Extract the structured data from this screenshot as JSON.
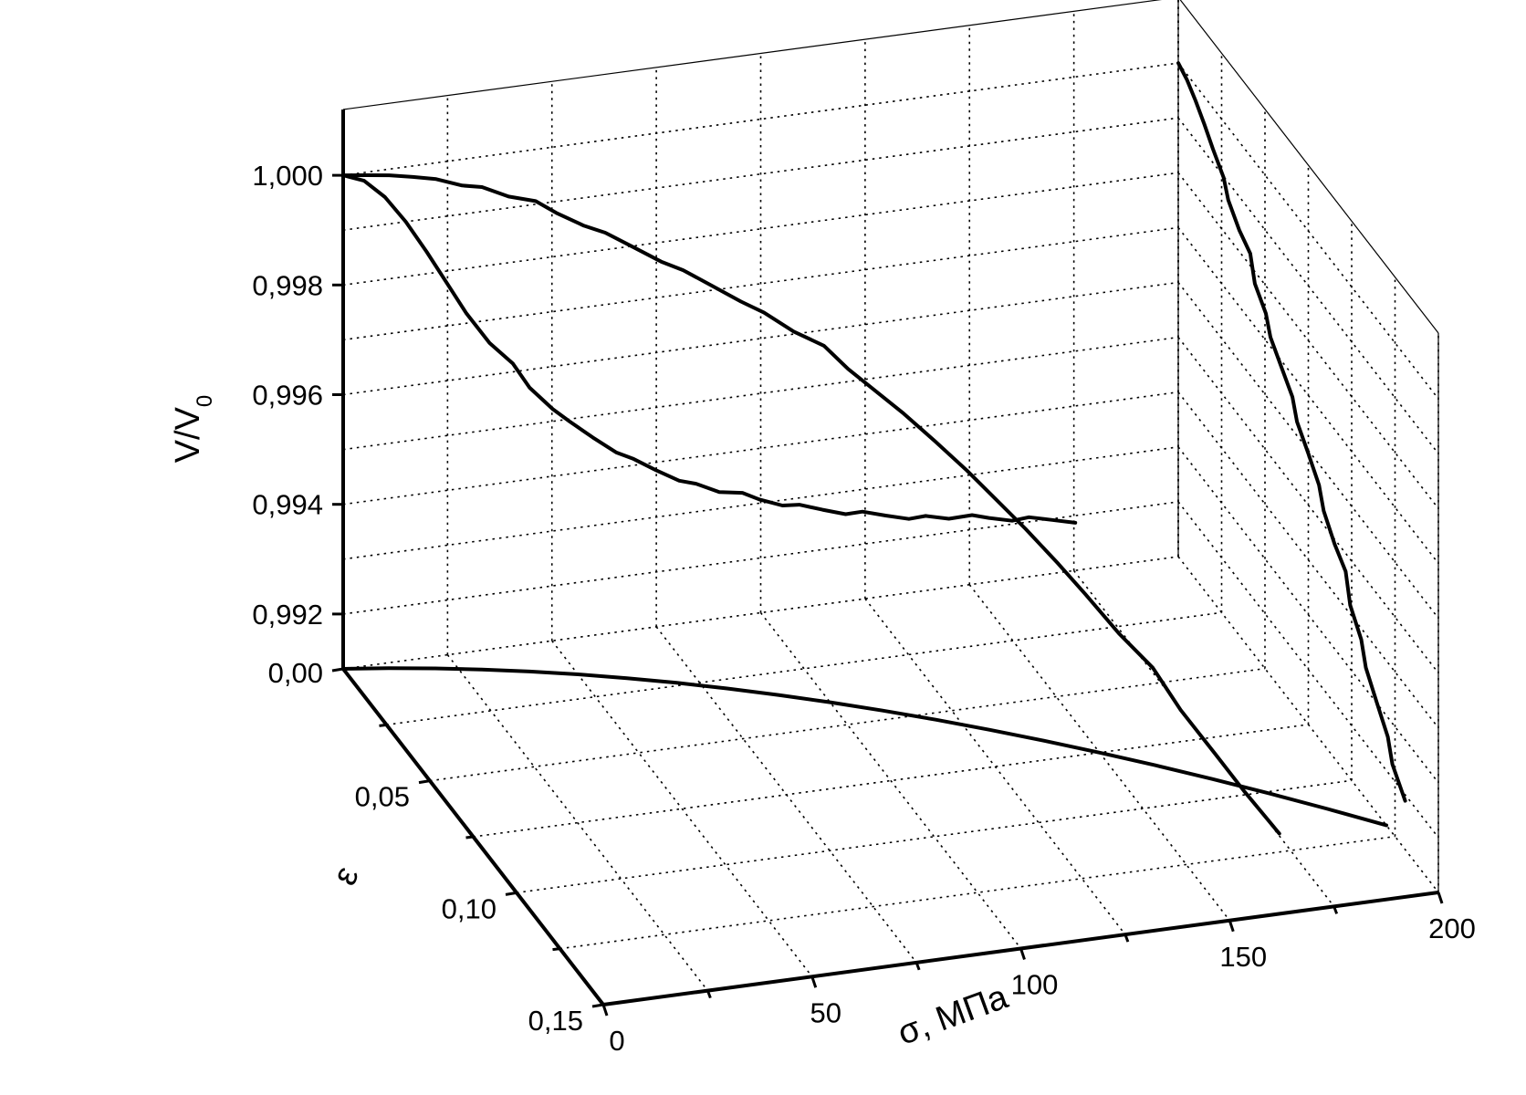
{
  "chart_data": {
    "type": "line3d",
    "title": "",
    "axes": {
      "sigma": {
        "label": "σ, МПа",
        "range": [
          0,
          200
        ],
        "ticks": [
          0,
          50,
          100,
          150,
          200
        ],
        "tick_labels": [
          "0",
          "50",
          "100",
          "150",
          "200"
        ]
      },
      "epsilon": {
        "label": "ε",
        "range": [
          0,
          0.15
        ],
        "ticks": [
          0,
          0.05,
          0.1,
          0.15
        ],
        "tick_labels": [
          "0,00",
          "0,05",
          "0,10",
          "0,15"
        ]
      },
      "v": {
        "label": "V/V",
        "label_subscript": "0",
        "range": [
          0.991,
          1.0012
        ],
        "ticks": [
          0.992,
          0.994,
          0.996,
          0.998,
          1.0
        ],
        "tick_labels": [
          "0,992",
          "0,994",
          "0,996",
          "0,998",
          "1,000"
        ]
      }
    },
    "grid": true,
    "series": [
      {
        "kind": "3d-curve",
        "points": [
          [
            0.0,
            0.0,
            1.0
          ],
          [
            5,
            0.0012,
            1.0
          ],
          [
            10,
            0.0025,
            1.0
          ],
          [
            15,
            0.004,
            0.99998
          ],
          [
            20,
            0.0055,
            0.99995
          ],
          [
            25,
            0.0072,
            0.9999
          ],
          [
            30,
            0.009,
            0.99982
          ],
          [
            35,
            0.011,
            0.99972
          ],
          [
            40,
            0.0132,
            0.9996
          ],
          [
            45,
            0.0155,
            0.99947
          ],
          [
            50,
            0.018,
            0.99933
          ],
          [
            55,
            0.0205,
            0.99918
          ],
          [
            60,
            0.0232,
            0.99902
          ],
          [
            65,
            0.026,
            0.99886
          ],
          [
            70,
            0.029,
            0.9987
          ],
          [
            75,
            0.0322,
            0.99854
          ],
          [
            80,
            0.0356,
            0.99838
          ],
          [
            85,
            0.0392,
            0.9982
          ],
          [
            90,
            0.043,
            0.998
          ],
          [
            95,
            0.047,
            0.99778
          ],
          [
            100,
            0.0512,
            0.99752
          ],
          [
            105,
            0.0556,
            0.99724
          ],
          [
            110,
            0.0602,
            0.99694
          ],
          [
            115,
            0.065,
            0.99662
          ],
          [
            120,
            0.07,
            0.99628
          ],
          [
            125,
            0.0752,
            0.9959
          ],
          [
            130,
            0.0806,
            0.99552
          ],
          [
            135,
            0.0862,
            0.9951
          ],
          [
            140,
            0.092,
            0.99466
          ],
          [
            145,
            0.098,
            0.99418
          ],
          [
            150,
            0.1042,
            0.99368
          ],
          [
            155,
            0.1106,
            0.99316
          ],
          [
            160,
            0.1172,
            0.99262
          ],
          [
            165,
            0.124,
            0.9921
          ],
          [
            170,
            0.131,
            0.9916
          ]
        ]
      },
      {
        "kind": "projection-sigma-v",
        "points": [
          [
            0,
            1.0
          ],
          [
            5,
            0.99985
          ],
          [
            10,
            0.9995
          ],
          [
            15,
            0.999
          ],
          [
            20,
            0.9984
          ],
          [
            25,
            0.99775
          ],
          [
            30,
            0.99715
          ],
          [
            35,
            0.9966
          ],
          [
            40,
            0.9961
          ],
          [
            45,
            0.99565
          ],
          [
            50,
            0.99525
          ],
          [
            55,
            0.9949
          ],
          [
            60,
            0.9946
          ],
          [
            65,
            0.99432
          ],
          [
            70,
            0.99408
          ],
          [
            75,
            0.99386
          ],
          [
            80,
            0.99366
          ],
          [
            85,
            0.99348
          ],
          [
            90,
            0.99332
          ],
          [
            95,
            0.99318
          ],
          [
            100,
            0.99305
          ],
          [
            105,
            0.99293
          ],
          [
            110,
            0.99282
          ],
          [
            115,
            0.99272
          ],
          [
            120,
            0.99263
          ],
          [
            125,
            0.99255
          ],
          [
            130,
            0.99247
          ],
          [
            135,
            0.9924
          ],
          [
            140,
            0.99233
          ],
          [
            145,
            0.99227
          ],
          [
            150,
            0.99221
          ],
          [
            155,
            0.99215
          ],
          [
            160,
            0.99209
          ],
          [
            165,
            0.99203
          ],
          [
            170,
            0.99197
          ],
          [
            175,
            0.99191
          ]
        ]
      },
      {
        "kind": "projection-epsilon-v",
        "points": [
          [
            0.0,
            1.0
          ],
          [
            0.005,
            0.9999
          ],
          [
            0.01,
            0.99972
          ],
          [
            0.015,
            0.9995
          ],
          [
            0.02,
            0.99925
          ],
          [
            0.025,
            0.99898
          ],
          [
            0.03,
            0.9987
          ],
          [
            0.035,
            0.9984
          ],
          [
            0.04,
            0.9981
          ],
          [
            0.045,
            0.9978
          ],
          [
            0.05,
            0.9975
          ],
          [
            0.055,
            0.9972
          ],
          [
            0.06,
            0.9969
          ],
          [
            0.065,
            0.9966
          ],
          [
            0.07,
            0.99628
          ],
          [
            0.075,
            0.99596
          ],
          [
            0.08,
            0.99562
          ],
          [
            0.085,
            0.99528
          ],
          [
            0.09,
            0.99492
          ],
          [
            0.095,
            0.99455
          ],
          [
            0.1,
            0.99418
          ],
          [
            0.105,
            0.9938
          ],
          [
            0.11,
            0.99342
          ],
          [
            0.115,
            0.99303
          ],
          [
            0.12,
            0.99265
          ],
          [
            0.125,
            0.99228
          ],
          [
            0.131,
            0.9919
          ]
        ]
      },
      {
        "kind": "projection-sigma-epsilon",
        "points": [
          [
            0,
            0.0
          ],
          [
            10,
            0.0022
          ],
          [
            20,
            0.0048
          ],
          [
            30,
            0.0078
          ],
          [
            40,
            0.0112
          ],
          [
            50,
            0.015
          ],
          [
            60,
            0.0192
          ],
          [
            70,
            0.0238
          ],
          [
            80,
            0.0288
          ],
          [
            90,
            0.0342
          ],
          [
            100,
            0.04
          ],
          [
            110,
            0.0462
          ],
          [
            120,
            0.0528
          ],
          [
            130,
            0.0598
          ],
          [
            140,
            0.0672
          ],
          [
            150,
            0.075
          ],
          [
            160,
            0.0832
          ],
          [
            170,
            0.0918
          ],
          [
            180,
            0.1008
          ],
          [
            190,
            0.1102
          ],
          [
            200,
            0.12
          ]
        ]
      }
    ]
  }
}
